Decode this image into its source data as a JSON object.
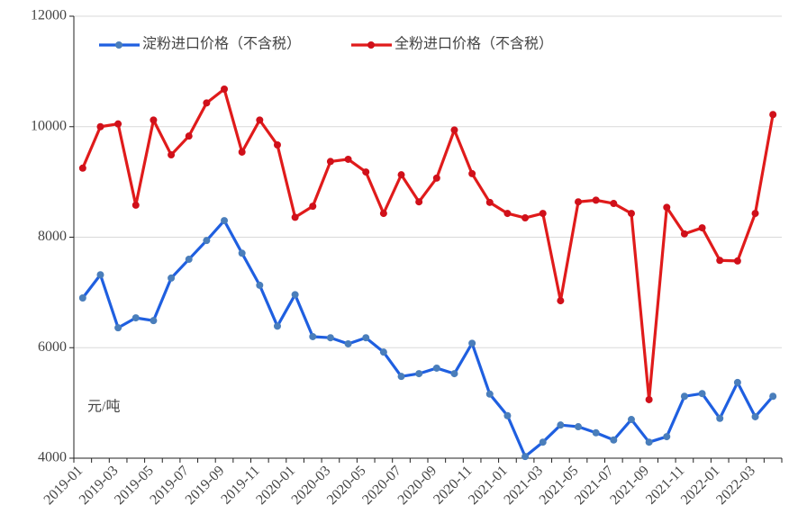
{
  "chart_data": {
    "type": "line",
    "y_unit_label": "元/吨",
    "categories": [
      "2019-01",
      null,
      "2019-03",
      null,
      "2019-05",
      null,
      "2019-07",
      null,
      "2019-09",
      null,
      "2019-11",
      null,
      "2020-01",
      null,
      "2020-03",
      null,
      "2020-05",
      null,
      "2020-07",
      null,
      "2020-09",
      null,
      "2020-11",
      null,
      "2021-01",
      null,
      "2021-03",
      null,
      "2021-05",
      null,
      "2021-07",
      null,
      "2021-09",
      null,
      "2021-11",
      null,
      "2022-01",
      null,
      "2022-03",
      null
    ],
    "series": [
      {
        "name": "淀粉进口价格（不含税）",
        "color": "#1f5fe0",
        "marker_color": "#4a7ebb",
        "values": [
          6900,
          7320,
          6360,
          6540,
          6490,
          7260,
          7600,
          7940,
          8300,
          7710,
          7130,
          6390,
          6960,
          6200,
          6180,
          6070,
          6180,
          5920,
          5480,
          5530,
          5630,
          5530,
          6080,
          5160,
          4770,
          4030,
          4290,
          4600,
          4570,
          4460,
          4330,
          4700,
          4290,
          4390,
          5120,
          5170,
          4720,
          5370,
          4750,
          5120
        ]
      },
      {
        "name": "全粉进口价格（不含税）",
        "color": "#e01b1b",
        "marker_color": "#d0101a",
        "values": [
          9250,
          10000,
          10050,
          8580,
          10120,
          9490,
          9830,
          10430,
          10680,
          9540,
          10120,
          9670,
          8360,
          8560,
          9370,
          9410,
          9180,
          8430,
          9130,
          8640,
          9070,
          9940,
          9150,
          8630,
          8430,
          8350,
          8430,
          6850,
          8640,
          8670,
          8610,
          8430,
          5060,
          8540,
          8060,
          8170,
          7580,
          7570,
          8430,
          10220
        ]
      }
    ],
    "ylim": [
      4000,
      12000
    ],
    "yticks": [
      4000,
      6000,
      8000,
      10000,
      12000
    ],
    "grid": true,
    "legend": "top"
  }
}
